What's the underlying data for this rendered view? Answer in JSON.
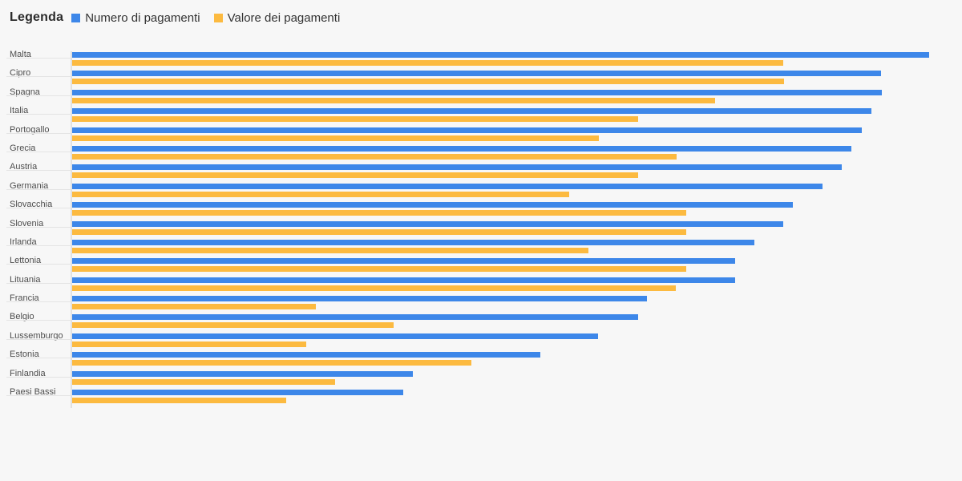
{
  "legend": {
    "title": "Legenda",
    "items": [
      {
        "label": "Numero di pagamenti",
        "color": "#3D87E9"
      },
      {
        "label": "Valore dei pagamenti",
        "color": "#FCBA40"
      }
    ]
  },
  "colors": {
    "background": "#f7f7f7",
    "numero_bar": "#3D87E9",
    "valore_bar": "#FCBA40",
    "label_text": "#4d4d4d",
    "legend_text": "#333333",
    "axis_line": "#e1e1e1",
    "label_underline": "#e4e4e4"
  },
  "chart_data": {
    "type": "bar",
    "orientation": "horizontal",
    "title": "",
    "xlabel": "",
    "ylabel": "",
    "axis_labels_shown": false,
    "grid": false,
    "legend_position": "top-left",
    "value_scale": "relative index, longest bar (Malta, Numero di pagamenti) = 100; no numeric axis is shown in the image",
    "xlim": [
      0,
      103.8
    ],
    "categories": [
      "Malta",
      "Cipro",
      "Spagna",
      "Italia",
      "Portogallo",
      "Grecia",
      "Austria",
      "Germania",
      "Slovacchia",
      "Slovenia",
      "Irlanda",
      "Lettonia",
      "Lituania",
      "Francia",
      "Belgio",
      "Lussemburgo",
      "Estonia",
      "Finlandia",
      "Paesi Bassi"
    ],
    "series": [
      {
        "name": "Numero di pagamenti",
        "color": "#3D87E9",
        "values": [
          100.0,
          94.4,
          94.5,
          93.3,
          92.1,
          90.9,
          89.8,
          87.6,
          84.1,
          83.0,
          79.6,
          77.4,
          77.4,
          67.1,
          66.0,
          61.4,
          54.6,
          39.8,
          38.6
        ]
      },
      {
        "name": "Valore dei pagamenti",
        "color": "#FCBA40",
        "values": [
          83.0,
          83.1,
          75.0,
          66.0,
          61.5,
          70.5,
          66.0,
          58.0,
          71.7,
          71.7,
          60.2,
          71.7,
          70.4,
          28.4,
          37.5,
          27.3,
          46.6,
          30.7,
          25.0
        ]
      }
    ]
  }
}
